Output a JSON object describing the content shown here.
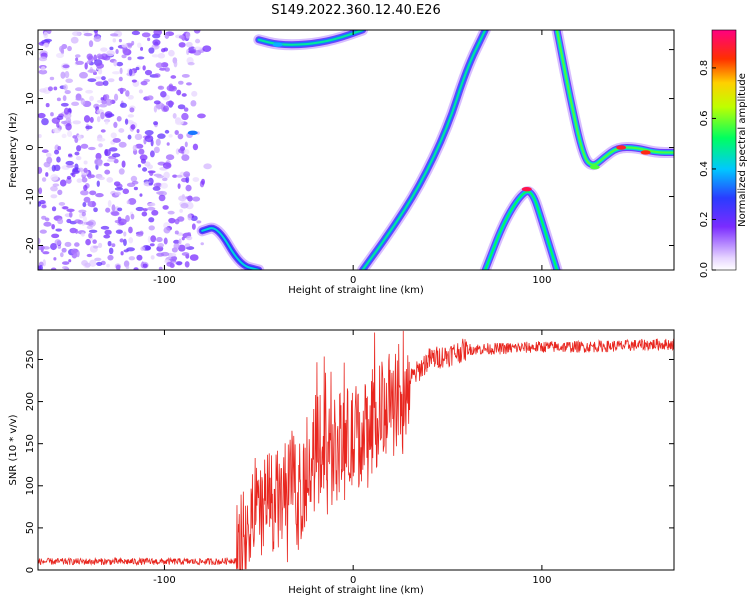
{
  "title": "S149.2022.360.12.40.E26",
  "colors": {
    "snr_line": "#e8261f",
    "scatter_points": "#8a2be2",
    "axes": "#000000"
  },
  "chart_data": [
    {
      "type": "heatmap",
      "xlabel": "Height of straight line (km)",
      "ylabel": "Frequency (Hz)",
      "xlim": [
        -167,
        170
      ],
      "ylim": [
        -25,
        24
      ],
      "xticks": [
        -100,
        0,
        100
      ],
      "yticks": [
        -20,
        -10,
        0,
        10,
        20
      ],
      "colorbar": {
        "label": "Normalized spectral amplitude",
        "range": [
          0,
          0.95
        ],
        "ticks": [
          0.0,
          0.2,
          0.4,
          0.6,
          0.8
        ],
        "colormap": "rainbow (white-purple-blue-cyan-green-yellow-red-magenta)"
      },
      "features": [
        {
          "name": "noise-cloud",
          "x_range": [
            -167,
            -75
          ],
          "y_range": [
            -25,
            24
          ],
          "amplitude": 0.15
        },
        {
          "name": "lower-left-trace",
          "points": [
            [
              -80,
              -17
            ],
            [
              -72,
              -16
            ],
            [
              -60,
              -24
            ],
            [
              -50,
              -25
            ]
          ],
          "amplitude": 0.3
        },
        {
          "name": "upper-trace",
          "points": [
            [
              -50,
              22
            ],
            [
              -40,
              21
            ],
            [
              -25,
              21
            ],
            [
              -10,
              22
            ],
            [
              5,
              24
            ]
          ],
          "amplitude": 0.35
        },
        {
          "name": "rising-arc",
          "points": [
            [
              5,
              -25
            ],
            [
              20,
              -17
            ],
            [
              35,
              -8
            ],
            [
              50,
              4
            ],
            [
              60,
              16
            ],
            [
              70,
              24
            ]
          ],
          "amplitude": 0.35
        },
        {
          "name": "lower-arch",
          "points": [
            [
              70,
              -25
            ],
            [
              80,
              -15
            ],
            [
              90,
              -9
            ],
            [
              95,
              -9
            ],
            [
              100,
              -15
            ],
            [
              108,
              -25
            ]
          ],
          "amplitude": 0.4
        },
        {
          "name": "descending-curve",
          "points": [
            [
              108,
              24
            ],
            [
              115,
              10
            ],
            [
              122,
              -2
            ],
            [
              127,
              -4
            ],
            [
              133,
              -2
            ],
            [
              140,
              0
            ],
            [
              150,
              0
            ],
            [
              160,
              -1
            ],
            [
              170,
              -1
            ]
          ],
          "amplitude": 0.45
        }
      ]
    },
    {
      "type": "line",
      "xlabel": "Height of straight line (km)",
      "ylabel": "SNR (10 * v/v)",
      "xlim": [
        -167,
        170
      ],
      "ylim": [
        0,
        285
      ],
      "xticks": [
        -100,
        0,
        100
      ],
      "yticks": [
        0,
        50,
        100,
        150,
        200,
        250
      ],
      "grid": false,
      "series": [
        {
          "x": [
            -167,
            -150,
            -130,
            -110,
            -90,
            -70,
            -62,
            -58,
            -55,
            -50,
            -45,
            -40,
            -35,
            -30,
            -25,
            -20,
            -15,
            -10,
            -5,
            0,
            5,
            10,
            15,
            20,
            25,
            30,
            40,
            50,
            60,
            80,
            100,
            120,
            140,
            160,
            170
          ],
          "y": [
            10,
            10,
            10,
            10,
            10,
            10,
            12,
            25,
            50,
            65,
            85,
            80,
            90,
            95,
            100,
            140,
            150,
            145,
            150,
            150,
            160,
            170,
            190,
            195,
            200,
            225,
            250,
            255,
            262,
            263,
            265,
            265,
            266,
            268,
            268
          ]
        }
      ]
    }
  ]
}
